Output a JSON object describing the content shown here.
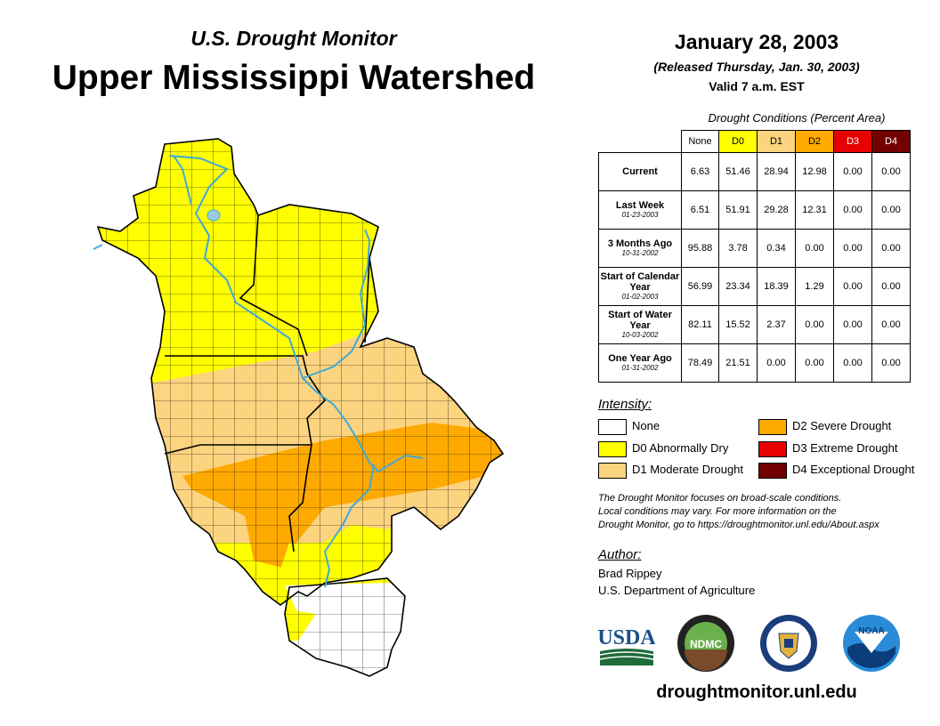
{
  "header": {
    "subtitle": "U.S. Drought Monitor",
    "title": "Upper Mississippi Watershed",
    "date": "January 28, 2003",
    "released": "(Released Thursday, Jan. 30, 2003)",
    "valid": "Valid 7 a.m. EST"
  },
  "table": {
    "title": "Drought Conditions (Percent Area)",
    "columns": [
      {
        "label": "None",
        "color": "#ffffff",
        "text": "#000000"
      },
      {
        "label": "D0",
        "color": "#ffff00",
        "text": "#000000"
      },
      {
        "label": "D1",
        "color": "#fcd37f",
        "text": "#000000"
      },
      {
        "label": "D2",
        "color": "#ffaa00",
        "text": "#000000"
      },
      {
        "label": "D3",
        "color": "#e60000",
        "text": "#ffffff"
      },
      {
        "label": "D4",
        "color": "#730000",
        "text": "#ffffff"
      }
    ],
    "rows": [
      {
        "label": "Current",
        "date": "",
        "values": [
          "6.63",
          "51.46",
          "28.94",
          "12.98",
          "0.00",
          "0.00"
        ]
      },
      {
        "label": "Last Week",
        "date": "01-23-2003",
        "values": [
          "6.51",
          "51.91",
          "29.28",
          "12.31",
          "0.00",
          "0.00"
        ]
      },
      {
        "label": "3 Months Ago",
        "date": "10-31-2002",
        "values": [
          "95.88",
          "3.78",
          "0.34",
          "0.00",
          "0.00",
          "0.00"
        ]
      },
      {
        "label": "Start of Calendar Year",
        "date": "01-02-2003",
        "values": [
          "56.99",
          "23.34",
          "18.39",
          "1.29",
          "0.00",
          "0.00"
        ]
      },
      {
        "label": "Start of Water Year",
        "date": "10-03-2002",
        "values": [
          "82.11",
          "15.52",
          "2.37",
          "0.00",
          "0.00",
          "0.00"
        ]
      },
      {
        "label": "One Year Ago",
        "date": "01-31-2002",
        "values": [
          "78.49",
          "21.51",
          "0.00",
          "0.00",
          "0.00",
          "0.00"
        ]
      }
    ]
  },
  "legend": {
    "title": "Intensity:",
    "items": [
      {
        "label": "None",
        "color": "#ffffff"
      },
      {
        "label": "D0 Abnormally Dry",
        "color": "#ffff00"
      },
      {
        "label": "D1 Moderate Drought",
        "color": "#fcd37f"
      },
      {
        "label": "D2 Severe Drought",
        "color": "#ffaa00"
      },
      {
        "label": "D3 Extreme Drought",
        "color": "#e60000"
      },
      {
        "label": "D4 Exceptional Drought",
        "color": "#730000"
      }
    ]
  },
  "note": {
    "line1": "The Drought Monitor focuses on broad-scale conditions.",
    "line2": "Local conditions may vary. For more information on the",
    "line3": "Drought Monitor, go to https://droughtmonitor.unl.edu/About.aspx"
  },
  "author": {
    "label": "Author:",
    "name": "Brad Rippey",
    "org": "U.S. Department of Agriculture"
  },
  "logos": {
    "usda": "USDA",
    "ndmc": "NDMC",
    "noaa": "NOAA"
  },
  "website": "droughtmonitor.unl.edu",
  "map": {
    "colors": {
      "none": "#ffffff",
      "d0": "#ffff00",
      "d1": "#fcd37f",
      "d2": "#ffaa00",
      "river": "#3fa9d8",
      "boundary": "#000000"
    }
  }
}
